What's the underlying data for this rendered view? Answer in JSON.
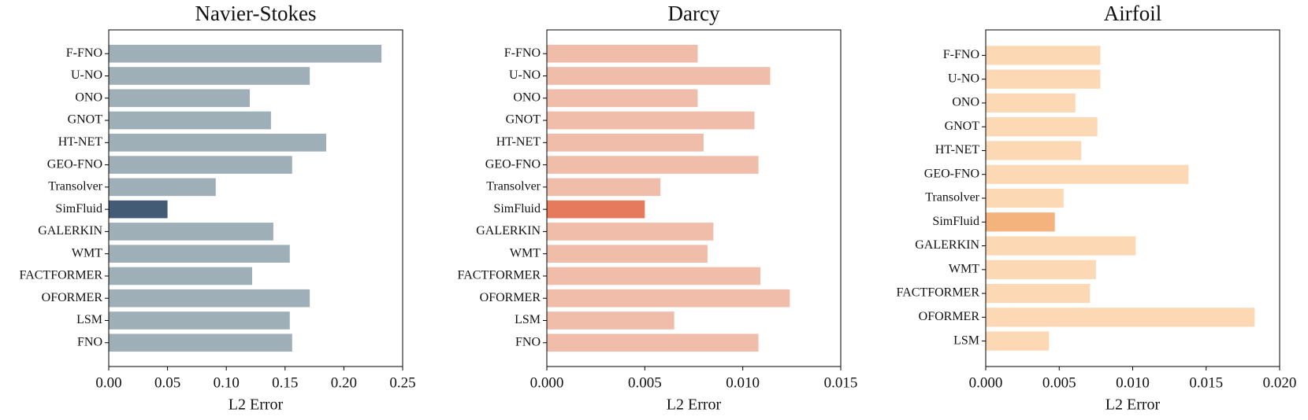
{
  "chart_data": [
    {
      "type": "barh",
      "title": "Navier-Stokes",
      "xlabel": "L2 Error",
      "categories": [
        "F-FNO",
        "U-NO",
        "ONO",
        "GNOT",
        "HT-NET",
        "GEO-FNO",
        "Transolver",
        "SimFluid",
        "GALERKIN",
        "WMT",
        "FACTFORMER",
        "OFORMER",
        "LSM",
        "FNO"
      ],
      "values": [
        0.232,
        0.171,
        0.12,
        0.138,
        0.185,
        0.156,
        0.091,
        0.05,
        0.14,
        0.154,
        0.122,
        0.171,
        0.154,
        0.156
      ],
      "colors": [
        "#9fafb7",
        "#9fafb7",
        "#9fafb7",
        "#9fafb7",
        "#9fafb7",
        "#9fafb7",
        "#9fafb7",
        "#435b74",
        "#9fafb7",
        "#9fafb7",
        "#9fafb7",
        "#9fafb7",
        "#9fafb7",
        "#9fafb7"
      ],
      "xlim": [
        0,
        0.25
      ],
      "xticks": [
        {
          "value": 0,
          "label": "0.00"
        },
        0.05,
        {
          "value": 0.1,
          "label": "0.10"
        },
        0.15,
        {
          "value": 0.2,
          "label": "0.20"
        },
        0.25
      ]
    },
    {
      "type": "barh",
      "title": "Darcy",
      "xlabel": "L2 Error",
      "categories": [
        "F-FNO",
        "U-NO",
        "ONO",
        "GNOT",
        "HT-NET",
        "GEO-FNO",
        "Transolver",
        "SimFluid",
        "GALERKIN",
        "WMT",
        "FACTFORMER",
        "OFORMER",
        "LSM",
        "FNO"
      ],
      "values": [
        0.0077,
        0.0114,
        0.0077,
        0.0106,
        0.008,
        0.0108,
        0.0058,
        0.005,
        0.0085,
        0.0082,
        0.0109,
        0.0124,
        0.0065,
        0.0108
      ],
      "colors": [
        "#efbdaa",
        "#efbdaa",
        "#efbdaa",
        "#efbdaa",
        "#efbdaa",
        "#efbdaa",
        "#efbdaa",
        "#e57a5c",
        "#efbdaa",
        "#efbdaa",
        "#efbdaa",
        "#efbdaa",
        "#efbdaa",
        "#efbdaa"
      ],
      "xlim": [
        0,
        0.015
      ],
      "xticks": [
        {
          "value": 0,
          "label": "0.000"
        },
        0.005,
        {
          "value": 0.01,
          "label": "0.010"
        },
        0.015
      ]
    },
    {
      "type": "barh",
      "title": "Airfoil",
      "xlabel": "L2 Error",
      "categories": [
        "F-FNO",
        "U-NO",
        "ONO",
        "GNOT",
        "HT-NET",
        "GEO-FNO",
        "Transolver",
        "SimFluid",
        "GALERKIN",
        "WMT",
        "FACTFORMER",
        "OFORMER",
        "LSM"
      ],
      "values": [
        0.0078,
        0.0078,
        0.0061,
        0.0076,
        0.0065,
        0.0138,
        0.0053,
        0.0047,
        0.0102,
        0.0075,
        0.0071,
        0.0183,
        0.0043
      ],
      "colors": [
        "#fcd9b4",
        "#fcd9b4",
        "#fcd9b4",
        "#fcd9b4",
        "#fcd9b4",
        "#fcd9b4",
        "#fcd9b4",
        "#f4b27d",
        "#fcd9b4",
        "#fcd9b4",
        "#fcd9b4",
        "#fcd9b4",
        "#fcd9b4"
      ],
      "xlim": [
        0,
        0.02
      ],
      "xticks": [
        {
          "value": 0,
          "label": "0.000"
        },
        0.005,
        {
          "value": 0.01,
          "label": "0.010"
        },
        0.015,
        {
          "value": 0.02,
          "label": "0.020"
        }
      ]
    }
  ]
}
